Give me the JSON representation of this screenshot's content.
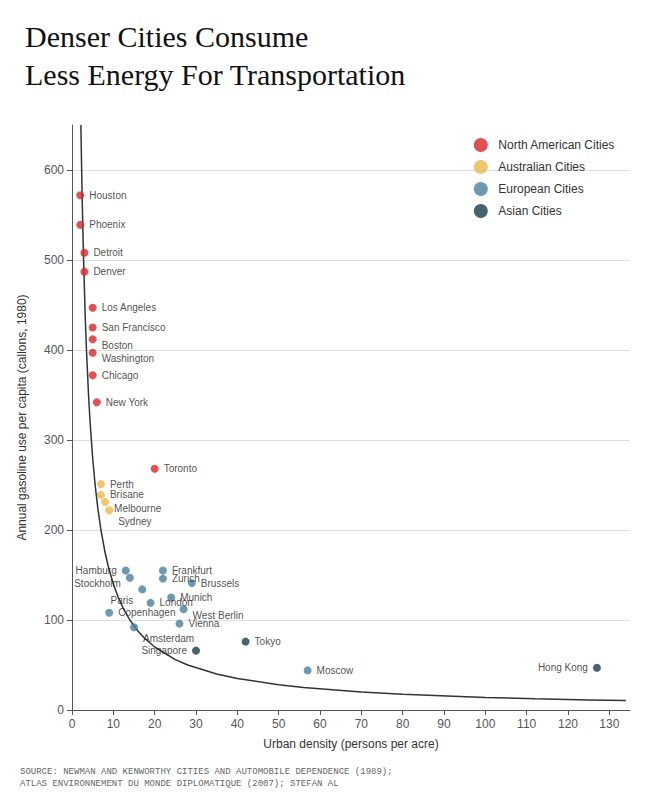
{
  "chart_data": {
    "type": "scatter",
    "title": "Denser Cities Consume\nLess Energy For Transportation",
    "xlabel": "Urban density (persons per acre)",
    "ylabel": "Annual gasoline use per capita (callons, 1980)",
    "annotations": [
      "SOURCE: NEWMAN AND KENWORTHY CITIES AND AUTOMOBILE DEPENDENCE (1989);\nATLAS ENVIRONNEMENT DU MONDE DIPLOMATIQUE (2007); STEFAN AL"
    ],
    "xlim": [
      0,
      135
    ],
    "ylim": [
      0,
      650
    ],
    "xticks": [
      0,
      10,
      20,
      30,
      40,
      50,
      60,
      70,
      80,
      90,
      100,
      110,
      120,
      130
    ],
    "yticks": [
      0,
      100,
      200,
      300,
      400,
      500,
      600
    ],
    "grid": "y",
    "legend": "upper right",
    "series": [
      {
        "type": "line",
        "color": "#333333",
        "x": [
          2.154,
          2.24,
          2.5,
          2.8,
          3.2,
          3.5,
          4,
          4.375,
          5,
          5.6,
          6.25,
          7,
          8,
          8.75,
          10,
          11.2,
          12.5,
          14,
          16,
          17.5,
          20,
          25,
          28,
          35,
          40,
          50,
          56,
          70,
          80,
          100,
          112,
          125,
          134
        ],
        "values": [
          649.953575,
          625,
          560,
          500,
          437.5,
          400,
          350,
          320,
          280,
          250,
          224,
          200,
          175,
          160,
          140,
          125,
          112,
          100,
          87.5,
          80,
          70,
          56,
          50,
          40,
          35,
          28,
          25,
          20,
          17.5,
          14,
          12.5,
          11.2,
          10.447761194
        ]
      },
      {
        "name": "North American Cities",
        "color": "#d62728",
        "x": [
          2,
          2,
          3,
          3,
          5,
          5,
          5,
          5,
          5,
          6,
          20
        ],
        "values": [
          572,
          539,
          508,
          487,
          447,
          425,
          412,
          397,
          372,
          342,
          268
        ],
        "point_labels": [
          "Houston",
          "Phoenix",
          "Detroit",
          "Denver",
          "Los Angeles",
          "San Francisco",
          "Boston",
          "Washington",
          "Chicago",
          "New York",
          "Toronto"
        ]
      },
      {
        "name": "Australian Cities",
        "color": "#e8b84b",
        "x": [
          7,
          7,
          8,
          9
        ],
        "values": [
          251,
          239,
          231,
          222
        ],
        "point_labels": [
          "Perth",
          "Brisane",
          "Melbourne",
          "Sydney"
        ]
      },
      {
        "name": "European Cities",
        "color": "#4a7f9e",
        "x": [
          13,
          14,
          22,
          22,
          17,
          29,
          19,
          24,
          9,
          27,
          15,
          26,
          57
        ],
        "values": [
          155,
          147,
          155,
          146,
          134,
          141,
          119,
          125,
          108,
          112,
          92,
          96,
          44
        ],
        "point_labels": [
          "Hamburg",
          "Stockholm",
          "Frankfurt",
          "Zurich",
          "Paris",
          "Brussels",
          "London",
          "Munich",
          "Copenhagen",
          "West Berlin",
          "Amsterdam",
          "Vienna",
          "Moscow"
        ]
      },
      {
        "name": "Asian Cities",
        "color": "#1a3a4a",
        "x": [
          30,
          42,
          127
        ],
        "values": [
          66,
          76,
          47
        ],
        "point_labels": [
          "Singapore",
          "Tokyo",
          "Hong Kong"
        ]
      }
    ]
  }
}
